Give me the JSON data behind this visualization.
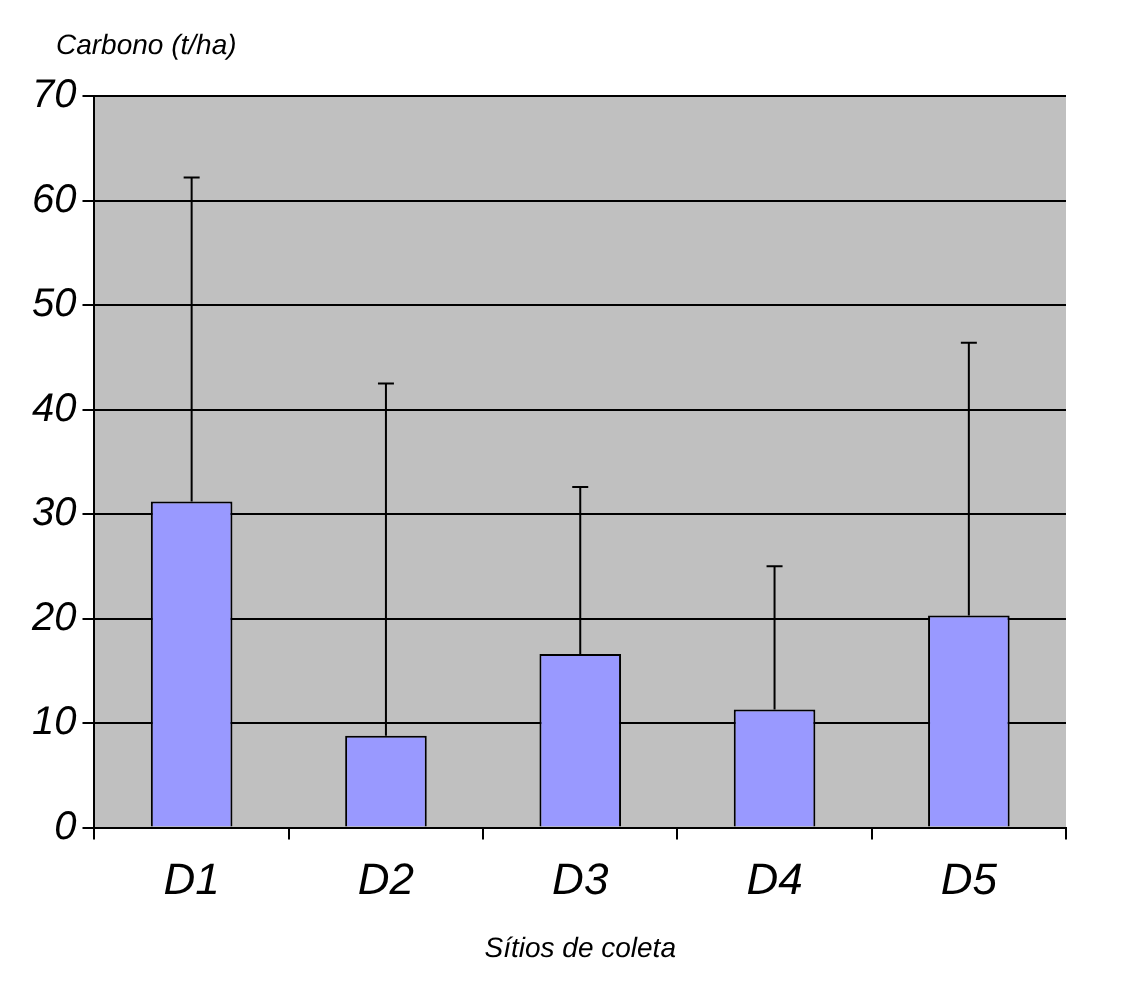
{
  "chart_data": {
    "type": "bar",
    "ylabel": "Carbono (t/ha)",
    "xlabel": "Sítios de coleta",
    "categories": [
      "D1",
      "D2",
      "D3",
      "D4",
      "D5"
    ],
    "values": [
      31.2,
      8.8,
      16.6,
      11.3,
      20.3
    ],
    "errors": [
      [
        31.2,
        62.2
      ],
      [
        8.8,
        42.5
      ],
      [
        16.6,
        32.6
      ],
      [
        11.3,
        25
      ],
      [
        20.3,
        46.4
      ]
    ],
    "color": "#9999ff",
    "ylim": [
      0,
      70
    ],
    "yticks": [
      0,
      10,
      20,
      30,
      40,
      50,
      60,
      70
    ],
    "grid": "y",
    "legend": false
  }
}
